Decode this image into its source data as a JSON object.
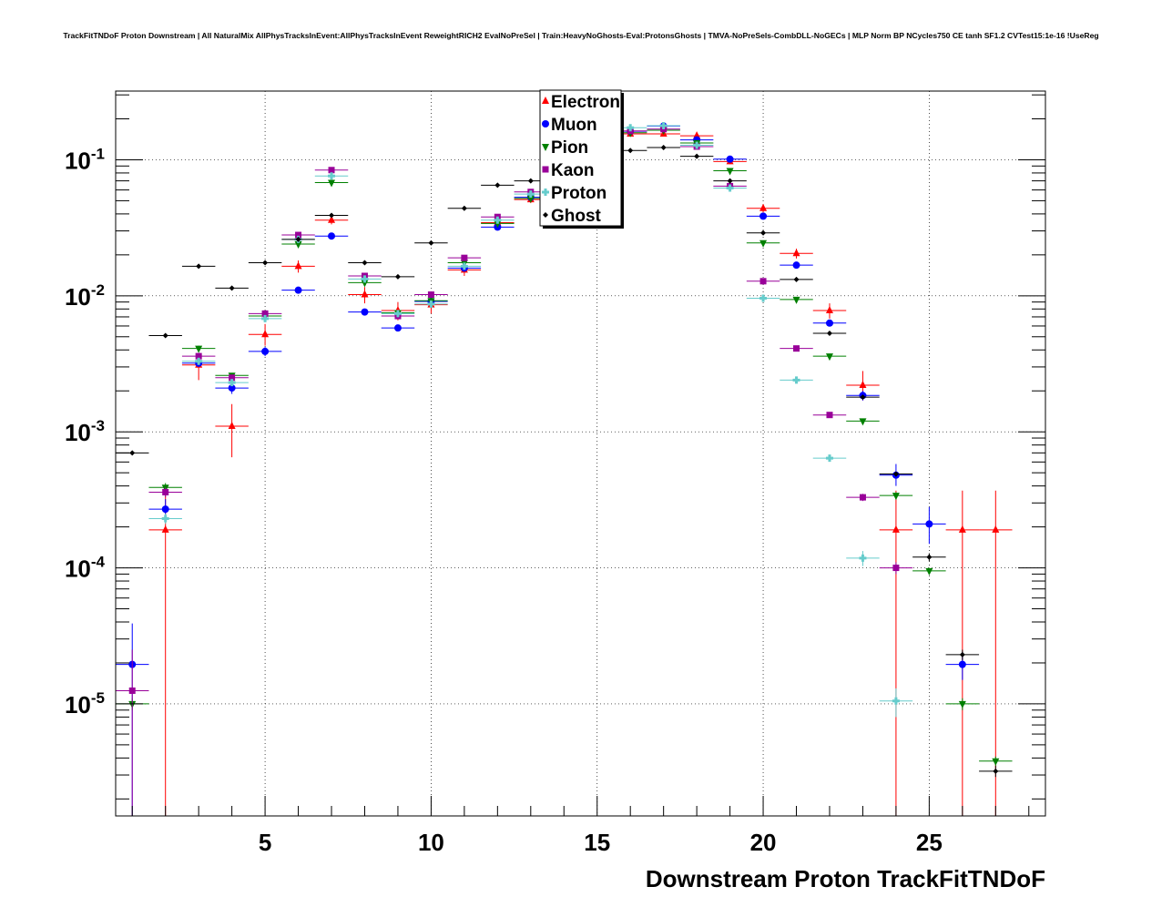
{
  "chart_data": {
    "type": "scatter",
    "title": "TrackFitTNDoF Proton Downstream | All NaturalMix AllPhysTracksInEvent:AllPhysTracksInEvent ReweightRICH2 EvalNoPreSel | Train:HeavyNoGhosts-Eval:ProtonsGhosts | TMVA-NoPreSels-CombDLL-NoGECs | MLP Norm BP NCycles750 CE tanh SF1.2 CVTest15:1e-16 !UseReg",
    "xlabel": "Downstream Proton TrackFitTNDoF",
    "ylabel": "",
    "xlim": [
      0.5,
      28.5
    ],
    "ylim": [
      1.5e-06,
      0.32
    ],
    "yscale": "log",
    "grid": true,
    "legend_position": "top-center",
    "x_ticks": [
      5,
      10,
      15,
      20,
      25
    ],
    "x_tick_labels": [
      "5",
      "10",
      "15",
      "20",
      "25"
    ],
    "y_ticks": [
      1e-05,
      0.0001,
      0.001,
      0.01,
      0.1
    ],
    "y_tick_labels": [
      {
        "base": "10",
        "exp": "-5"
      },
      {
        "base": "10",
        "exp": "-4"
      },
      {
        "base": "10",
        "exp": "-3"
      },
      {
        "base": "10",
        "exp": "-2"
      },
      {
        "base": "10",
        "exp": "-1"
      }
    ],
    "series": [
      {
        "name": "Electron",
        "color": "#ff0000",
        "marker": "triangle-up",
        "points": [
          {
            "x": 2,
            "y": 0.00019,
            "lo": 1e-07,
            "hi": 0.00036
          },
          {
            "x": 3,
            "y": 0.0031,
            "lo": 0.0024,
            "hi": 0.0038
          },
          {
            "x": 4,
            "y": 0.0011,
            "lo": 0.00065,
            "hi": 0.0016
          },
          {
            "x": 5,
            "y": 0.0052,
            "lo": 0.0043,
            "hi": 0.0062
          },
          {
            "x": 6,
            "y": 0.0165,
            "lo": 0.0148,
            "hi": 0.0182
          },
          {
            "x": 7,
            "y": 0.036,
            "lo": 0.0335,
            "hi": 0.0385
          },
          {
            "x": 8,
            "y": 0.0102,
            "lo": 0.0088,
            "hi": 0.0116
          },
          {
            "x": 9,
            "y": 0.0078,
            "lo": 0.0066,
            "hi": 0.009
          },
          {
            "x": 10,
            "y": 0.0086,
            "lo": 0.0074,
            "hi": 0.0098
          },
          {
            "x": 11,
            "y": 0.0155,
            "lo": 0.014,
            "hi": 0.017
          },
          {
            "x": 12,
            "y": 0.0345,
            "lo": 0.032,
            "hi": 0.037
          },
          {
            "x": 13,
            "y": 0.051,
            "lo": 0.048,
            "hi": 0.054
          },
          {
            "x": 16,
            "y": 0.155,
            "lo": 0.15,
            "hi": 0.16
          },
          {
            "x": 17,
            "y": 0.155,
            "lo": 0.15,
            "hi": 0.16
          },
          {
            "x": 18,
            "y": 0.15,
            "lo": 0.145,
            "hi": 0.155
          },
          {
            "x": 19,
            "y": 0.097,
            "lo": 0.093,
            "hi": 0.101
          },
          {
            "x": 20,
            "y": 0.044,
            "lo": 0.041,
            "hi": 0.047
          },
          {
            "x": 21,
            "y": 0.0205,
            "lo": 0.0188,
            "hi": 0.0222
          },
          {
            "x": 22,
            "y": 0.0078,
            "lo": 0.0068,
            "hi": 0.0088
          },
          {
            "x": 23,
            "y": 0.0022,
            "lo": 0.0017,
            "hi": 0.0028
          },
          {
            "x": 24,
            "y": 0.00019,
            "lo": 1e-07,
            "hi": 0.00037
          },
          {
            "x": 26,
            "y": 0.00019,
            "lo": 1e-07,
            "hi": 0.00037
          },
          {
            "x": 27,
            "y": 0.00019,
            "lo": 1e-07,
            "hi": 0.00037
          }
        ]
      },
      {
        "name": "Muon",
        "color": "#0000ff",
        "marker": "circle",
        "points": [
          {
            "x": 1,
            "y": 1.95e-05,
            "lo": 1.1e-06,
            "hi": 3.9e-05
          },
          {
            "x": 2,
            "y": 0.00027,
            "lo": 0.00022,
            "hi": 0.00032
          },
          {
            "x": 3,
            "y": 0.0032,
            "lo": 0.003,
            "hi": 0.0034
          },
          {
            "x": 4,
            "y": 0.0021,
            "lo": 0.0019,
            "hi": 0.0023
          },
          {
            "x": 5,
            "y": 0.0039,
            "lo": 0.0036,
            "hi": 0.0042
          },
          {
            "x": 6,
            "y": 0.011,
            "lo": 0.0105,
            "hi": 0.0115
          },
          {
            "x": 7,
            "y": 0.0275,
            "lo": 0.0267,
            "hi": 0.0283
          },
          {
            "x": 8,
            "y": 0.0076,
            "lo": 0.0072,
            "hi": 0.008
          },
          {
            "x": 9,
            "y": 0.0058,
            "lo": 0.0055,
            "hi": 0.0061
          },
          {
            "x": 10,
            "y": 0.0091,
            "lo": 0.0087,
            "hi": 0.0095
          },
          {
            "x": 11,
            "y": 0.016,
            "lo": 0.0155,
            "hi": 0.0165
          },
          {
            "x": 12,
            "y": 0.032,
            "lo": 0.0313,
            "hi": 0.0327
          },
          {
            "x": 13,
            "y": 0.053,
            "lo": 0.052,
            "hi": 0.054
          },
          {
            "x": 16,
            "y": 0.162,
            "lo": 0.16,
            "hi": 0.164
          },
          {
            "x": 17,
            "y": 0.177,
            "lo": 0.175,
            "hi": 0.179
          },
          {
            "x": 18,
            "y": 0.14,
            "lo": 0.138,
            "hi": 0.142
          },
          {
            "x": 19,
            "y": 0.101,
            "lo": 0.0995,
            "hi": 0.1025
          },
          {
            "x": 20,
            "y": 0.0385,
            "lo": 0.0375,
            "hi": 0.0395
          },
          {
            "x": 21,
            "y": 0.0168,
            "lo": 0.0162,
            "hi": 0.0174
          },
          {
            "x": 22,
            "y": 0.0063,
            "lo": 0.006,
            "hi": 0.0066
          },
          {
            "x": 23,
            "y": 0.00185,
            "lo": 0.0017,
            "hi": 0.002
          },
          {
            "x": 24,
            "y": 0.00048,
            "lo": 0.0004,
            "hi": 0.00058
          },
          {
            "x": 25,
            "y": 0.00021,
            "lo": 0.00015,
            "hi": 0.00028
          },
          {
            "x": 26,
            "y": 1.95e-05,
            "lo": 1.5e-05,
            "hi": 2.4e-05
          }
        ]
      },
      {
        "name": "Pion",
        "color": "#008000",
        "marker": "triangle-down",
        "points": [
          {
            "x": 1,
            "y": 1e-05,
            "lo": 9e-06,
            "hi": 1.1e-05
          },
          {
            "x": 2,
            "y": 0.00039,
            "lo": 0.00036,
            "hi": 0.00042
          },
          {
            "x": 3,
            "y": 0.0041,
            "lo": 0.0039,
            "hi": 0.0043
          },
          {
            "x": 4,
            "y": 0.0026,
            "lo": 0.0025,
            "hi": 0.0027
          },
          {
            "x": 5,
            "y": 0.0071,
            "lo": 0.0069,
            "hi": 0.0073
          },
          {
            "x": 6,
            "y": 0.024,
            "lo": 0.0236,
            "hi": 0.0244
          },
          {
            "x": 7,
            "y": 0.068,
            "lo": 0.067,
            "hi": 0.069
          },
          {
            "x": 8,
            "y": 0.0125,
            "lo": 0.0122,
            "hi": 0.0128
          },
          {
            "x": 9,
            "y": 0.0075,
            "lo": 0.0073,
            "hi": 0.0077
          },
          {
            "x": 10,
            "y": 0.0092,
            "lo": 0.009,
            "hi": 0.0094
          },
          {
            "x": 11,
            "y": 0.0175,
            "lo": 0.0172,
            "hi": 0.0178
          },
          {
            "x": 12,
            "y": 0.034,
            "lo": 0.0335,
            "hi": 0.0345
          },
          {
            "x": 13,
            "y": 0.052,
            "lo": 0.0513,
            "hi": 0.0527
          },
          {
            "x": 16,
            "y": 0.158,
            "lo": 0.157,
            "hi": 0.159
          },
          {
            "x": 17,
            "y": 0.165,
            "lo": 0.164,
            "hi": 0.166
          },
          {
            "x": 18,
            "y": 0.133,
            "lo": 0.132,
            "hi": 0.134
          },
          {
            "x": 19,
            "y": 0.083,
            "lo": 0.0822,
            "hi": 0.0838
          },
          {
            "x": 20,
            "y": 0.0245,
            "lo": 0.0241,
            "hi": 0.0249
          },
          {
            "x": 21,
            "y": 0.0094,
            "lo": 0.0092,
            "hi": 0.0096
          },
          {
            "x": 22,
            "y": 0.0036,
            "lo": 0.0035,
            "hi": 0.0037
          },
          {
            "x": 23,
            "y": 0.0012,
            "lo": 0.00117,
            "hi": 0.00123
          },
          {
            "x": 24,
            "y": 0.00034,
            "lo": 0.00032,
            "hi": 0.00036
          },
          {
            "x": 25,
            "y": 9.5e-05,
            "lo": 9e-05,
            "hi": 0.0001
          },
          {
            "x": 26,
            "y": 1e-05,
            "lo": 9e-06,
            "hi": 1.1e-05
          },
          {
            "x": 27,
            "y": 3.8e-06,
            "lo": 3.5e-06,
            "hi": 4.1e-06
          }
        ]
      },
      {
        "name": "Kaon",
        "color": "#990099",
        "marker": "square",
        "points": [
          {
            "x": 1,
            "y": 1.25e-05,
            "lo": 1e-07,
            "hi": 2.5e-05
          },
          {
            "x": 2,
            "y": 0.00036,
            "lo": 0.00033,
            "hi": 0.00039
          },
          {
            "x": 3,
            "y": 0.0036,
            "lo": 0.0034,
            "hi": 0.0038
          },
          {
            "x": 4,
            "y": 0.0025,
            "lo": 0.0024,
            "hi": 0.0026
          },
          {
            "x": 5,
            "y": 0.0074,
            "lo": 0.0072,
            "hi": 0.0076
          },
          {
            "x": 6,
            "y": 0.028,
            "lo": 0.0276,
            "hi": 0.0284
          },
          {
            "x": 7,
            "y": 0.084,
            "lo": 0.083,
            "hi": 0.085
          },
          {
            "x": 8,
            "y": 0.014,
            "lo": 0.0137,
            "hi": 0.0143
          },
          {
            "x": 9,
            "y": 0.0071,
            "lo": 0.0069,
            "hi": 0.0073
          },
          {
            "x": 10,
            "y": 0.0102,
            "lo": 0.01,
            "hi": 0.0104
          },
          {
            "x": 11,
            "y": 0.019,
            "lo": 0.0187,
            "hi": 0.0193
          },
          {
            "x": 12,
            "y": 0.038,
            "lo": 0.0375,
            "hi": 0.0385
          },
          {
            "x": 13,
            "y": 0.058,
            "lo": 0.0573,
            "hi": 0.0587
          },
          {
            "x": 16,
            "y": 0.163,
            "lo": 0.162,
            "hi": 0.164
          },
          {
            "x": 17,
            "y": 0.168,
            "lo": 0.167,
            "hi": 0.169
          },
          {
            "x": 18,
            "y": 0.125,
            "lo": 0.124,
            "hi": 0.126
          },
          {
            "x": 19,
            "y": 0.064,
            "lo": 0.0633,
            "hi": 0.0647
          },
          {
            "x": 20,
            "y": 0.0128,
            "lo": 0.0125,
            "hi": 0.0131
          },
          {
            "x": 21,
            "y": 0.0041,
            "lo": 0.00398,
            "hi": 0.00422
          },
          {
            "x": 22,
            "y": 0.00133,
            "lo": 0.00128,
            "hi": 0.00138
          },
          {
            "x": 23,
            "y": 0.00033,
            "lo": 0.00031,
            "hi": 0.00035
          },
          {
            "x": 24,
            "y": 0.0001,
            "lo": 9e-05,
            "hi": 0.00011
          }
        ]
      },
      {
        "name": "Proton",
        "color": "#66cccc",
        "marker": "cross",
        "points": [
          {
            "x": 2,
            "y": 0.00023,
            "lo": 0.00021,
            "hi": 0.00025
          },
          {
            "x": 3,
            "y": 0.0033,
            "lo": 0.0032,
            "hi": 0.0034
          },
          {
            "x": 4,
            "y": 0.0023,
            "lo": 0.00223,
            "hi": 0.00237
          },
          {
            "x": 5,
            "y": 0.0068,
            "lo": 0.0066,
            "hi": 0.007
          },
          {
            "x": 6,
            "y": 0.026,
            "lo": 0.0256,
            "hi": 0.0264
          },
          {
            "x": 7,
            "y": 0.076,
            "lo": 0.075,
            "hi": 0.077
          },
          {
            "x": 8,
            "y": 0.0133,
            "lo": 0.013,
            "hi": 0.0136
          },
          {
            "x": 9,
            "y": 0.0074,
            "lo": 0.0072,
            "hi": 0.0076
          },
          {
            "x": 10,
            "y": 0.0087,
            "lo": 0.0085,
            "hi": 0.0089
          },
          {
            "x": 11,
            "y": 0.0165,
            "lo": 0.0162,
            "hi": 0.0168
          },
          {
            "x": 12,
            "y": 0.036,
            "lo": 0.0355,
            "hi": 0.0365
          },
          {
            "x": 13,
            "y": 0.056,
            "lo": 0.0553,
            "hi": 0.0567
          },
          {
            "x": 16,
            "y": 0.172,
            "lo": 0.171,
            "hi": 0.173
          },
          {
            "x": 17,
            "y": 0.178,
            "lo": 0.177,
            "hi": 0.179
          },
          {
            "x": 18,
            "y": 0.128,
            "lo": 0.127,
            "hi": 0.129
          },
          {
            "x": 19,
            "y": 0.062,
            "lo": 0.0613,
            "hi": 0.0627
          },
          {
            "x": 20,
            "y": 0.0096,
            "lo": 0.0094,
            "hi": 0.0098
          },
          {
            "x": 21,
            "y": 0.0024,
            "lo": 0.00234,
            "hi": 0.00246
          },
          {
            "x": 22,
            "y": 0.00064,
            "lo": 0.00061,
            "hi": 0.00067
          },
          {
            "x": 23,
            "y": 0.000118,
            "lo": 0.000103,
            "hi": 0.000133
          },
          {
            "x": 24,
            "y": 1.05e-05,
            "lo": 8e-06,
            "hi": 1.3e-05
          }
        ]
      },
      {
        "name": "Ghost",
        "color": "#000000",
        "marker": "diamond",
        "points": [
          {
            "x": 1,
            "y": 0.0007,
            "lo": 0.00068,
            "hi": 0.00072
          },
          {
            "x": 2,
            "y": 0.0051,
            "lo": 0.005,
            "hi": 0.0052
          },
          {
            "x": 3,
            "y": 0.0165,
            "lo": 0.0163,
            "hi": 0.0167
          },
          {
            "x": 4,
            "y": 0.0114,
            "lo": 0.0112,
            "hi": 0.0116
          },
          {
            "x": 5,
            "y": 0.0175,
            "lo": 0.0173,
            "hi": 0.0177
          },
          {
            "x": 6,
            "y": 0.026,
            "lo": 0.0257,
            "hi": 0.0263
          },
          {
            "x": 7,
            "y": 0.039,
            "lo": 0.0386,
            "hi": 0.0394
          },
          {
            "x": 8,
            "y": 0.0175,
            "lo": 0.0173,
            "hi": 0.0177
          },
          {
            "x": 9,
            "y": 0.0138,
            "lo": 0.0136,
            "hi": 0.014
          },
          {
            "x": 10,
            "y": 0.0245,
            "lo": 0.0242,
            "hi": 0.0248
          },
          {
            "x": 11,
            "y": 0.044,
            "lo": 0.0435,
            "hi": 0.0445
          },
          {
            "x": 12,
            "y": 0.065,
            "lo": 0.0644,
            "hi": 0.0656
          },
          {
            "x": 13,
            "y": 0.07,
            "lo": 0.0694,
            "hi": 0.0706
          },
          {
            "x": 16,
            "y": 0.117,
            "lo": 0.116,
            "hi": 0.118
          },
          {
            "x": 17,
            "y": 0.123,
            "lo": 0.122,
            "hi": 0.124
          },
          {
            "x": 18,
            "y": 0.106,
            "lo": 0.105,
            "hi": 0.107
          },
          {
            "x": 19,
            "y": 0.07,
            "lo": 0.0694,
            "hi": 0.0706
          },
          {
            "x": 20,
            "y": 0.029,
            "lo": 0.0287,
            "hi": 0.0293
          },
          {
            "x": 21,
            "y": 0.0132,
            "lo": 0.013,
            "hi": 0.0134
          },
          {
            "x": 22,
            "y": 0.0053,
            "lo": 0.0052,
            "hi": 0.0054
          },
          {
            "x": 23,
            "y": 0.0018,
            "lo": 0.00175,
            "hi": 0.00185
          },
          {
            "x": 24,
            "y": 0.00049,
            "lo": 0.00047,
            "hi": 0.00051
          },
          {
            "x": 25,
            "y": 0.00012,
            "lo": 0.000112,
            "hi": 0.000128
          },
          {
            "x": 26,
            "y": 2.3e-05,
            "lo": 2.1e-05,
            "hi": 2.5e-05
          },
          {
            "x": 27,
            "y": 3.2e-06,
            "lo": 2.9e-06,
            "hi": 3.5e-06
          }
        ]
      }
    ]
  }
}
